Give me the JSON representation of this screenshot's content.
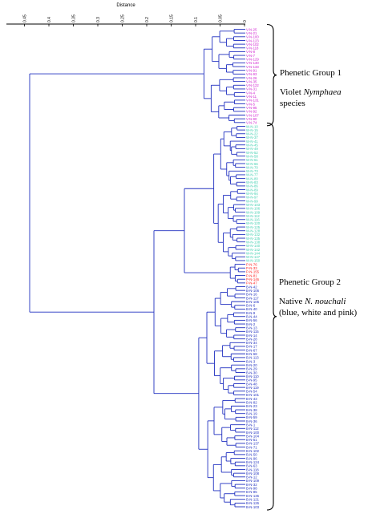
{
  "axis": {
    "title": "Distance",
    "ticks": [
      "0.45",
      "0.4",
      "0.35",
      "0.3",
      "0.25",
      "0.2",
      "0.15",
      "0.1",
      "0.05",
      "0"
    ]
  },
  "colors": {
    "violet": "#d020d0",
    "white": "#40d0b0",
    "pink": "#ff2020",
    "blue": "#2030c0",
    "tree": "#2030c0"
  },
  "groups": [
    {
      "title": "Phenetic Group 1",
      "line1": "Violet ",
      "line1_italic": "Nymphaea",
      "line2": "species"
    },
    {
      "title": "Phenetic Group 2",
      "line1": "Native ",
      "line1_italic": "N. nouchali",
      "line2": "(blue, white and pink)"
    }
  ],
  "leaves": [
    {
      "label": "V-N-25",
      "c": "violet"
    },
    {
      "label": "V-N-21",
      "c": "violet"
    },
    {
      "label": "V-N-100",
      "c": "violet"
    },
    {
      "label": "V-N-123",
      "c": "violet"
    },
    {
      "label": "V-N-102",
      "c": "violet"
    },
    {
      "label": "V-N-118",
      "c": "violet"
    },
    {
      "label": "V-N-8",
      "c": "violet"
    },
    {
      "label": "V-N-7",
      "c": "violet"
    },
    {
      "label": "V-N-129",
      "c": "violet"
    },
    {
      "label": "V-N-130",
      "c": "violet"
    },
    {
      "label": "V-N-133",
      "c": "violet"
    },
    {
      "label": "V-N-91",
      "c": "violet"
    },
    {
      "label": "V-N-93",
      "c": "violet"
    },
    {
      "label": "V-N-26",
      "c": "violet"
    },
    {
      "label": "V-N-35",
      "c": "violet"
    },
    {
      "label": "V-N-122",
      "c": "violet"
    },
    {
      "label": "V-N-31",
      "c": "violet"
    },
    {
      "label": "V-N-4",
      "c": "violet"
    },
    {
      "label": "V-N-11",
      "c": "violet"
    },
    {
      "label": "V-N-131",
      "c": "violet"
    },
    {
      "label": "V-N-5",
      "c": "violet"
    },
    {
      "label": "V-N-95",
      "c": "violet"
    },
    {
      "label": "V-N-92",
      "c": "violet"
    },
    {
      "label": "V-N-107",
      "c": "violet"
    },
    {
      "label": "V-N-90",
      "c": "violet"
    },
    {
      "label": "V-N-74",
      "c": "violet"
    },
    {
      "label": "W-N-10",
      "c": "white"
    },
    {
      "label": "W-N-15",
      "c": "white"
    },
    {
      "label": "W-N-22",
      "c": "white"
    },
    {
      "label": "W-N-37",
      "c": "white"
    },
    {
      "label": "W-N-41",
      "c": "white"
    },
    {
      "label": "W-N-45",
      "c": "white"
    },
    {
      "label": "W-N-49",
      "c": "white"
    },
    {
      "label": "W-N-52",
      "c": "white"
    },
    {
      "label": "W-N-58",
      "c": "white"
    },
    {
      "label": "W-N-61",
      "c": "white"
    },
    {
      "label": "W-N-66",
      "c": "white"
    },
    {
      "label": "W-N-70",
      "c": "white"
    },
    {
      "label": "W-N-73",
      "c": "white"
    },
    {
      "label": "W-N-77",
      "c": "white"
    },
    {
      "label": "W-N-80",
      "c": "white"
    },
    {
      "label": "W-N-83",
      "c": "white"
    },
    {
      "label": "W-N-86",
      "c": "white"
    },
    {
      "label": "W-N-89",
      "c": "white"
    },
    {
      "label": "W-N-94",
      "c": "white"
    },
    {
      "label": "W-N-97",
      "c": "white"
    },
    {
      "label": "W-N-99",
      "c": "white"
    },
    {
      "label": "W-N-103",
      "c": "white"
    },
    {
      "label": "W-N-106",
      "c": "white"
    },
    {
      "label": "W-N-109",
      "c": "white"
    },
    {
      "label": "W-N-112",
      "c": "white"
    },
    {
      "label": "W-N-116",
      "c": "white"
    },
    {
      "label": "W-N-120",
      "c": "white"
    },
    {
      "label": "W-N-125",
      "c": "white"
    },
    {
      "label": "W-N-128",
      "c": "white"
    },
    {
      "label": "W-N-132",
      "c": "white"
    },
    {
      "label": "W-N-135",
      "c": "white"
    },
    {
      "label": "W-N-138",
      "c": "white"
    },
    {
      "label": "W-N-140",
      "c": "white"
    },
    {
      "label": "W-N-142",
      "c": "white"
    },
    {
      "label": "W-N-144",
      "c": "white"
    },
    {
      "label": "W-N-147",
      "c": "white"
    },
    {
      "label": "W-N-150",
      "c": "white"
    },
    {
      "label": "P-N-76",
      "c": "pink"
    },
    {
      "label": "P-N-33",
      "c": "pink"
    },
    {
      "label": "P-N-155",
      "c": "pink"
    },
    {
      "label": "P-N-81",
      "c": "pink"
    },
    {
      "label": "P-N-146",
      "c": "pink"
    },
    {
      "label": "P-N-47",
      "c": "pink"
    },
    {
      "label": "B-N-42",
      "c": "blue"
    },
    {
      "label": "B-N-106",
      "c": "blue"
    },
    {
      "label": "B-N-16",
      "c": "blue"
    },
    {
      "label": "B-N-117",
      "c": "blue"
    },
    {
      "label": "B-N-105",
      "c": "blue"
    },
    {
      "label": "B-N-6",
      "c": "blue"
    },
    {
      "label": "B-N-40",
      "c": "blue"
    },
    {
      "label": "B-N-9",
      "c": "blue"
    },
    {
      "label": "B-N-44",
      "c": "blue"
    },
    {
      "label": "B-N-56",
      "c": "blue"
    },
    {
      "label": "B-N-2",
      "c": "blue"
    },
    {
      "label": "B-N-13",
      "c": "blue"
    },
    {
      "label": "B-N-115",
      "c": "blue"
    },
    {
      "label": "B-N-14",
      "c": "blue"
    },
    {
      "label": "B-N-28",
      "c": "blue"
    },
    {
      "label": "B-N-34",
      "c": "blue"
    },
    {
      "label": "B-N-17",
      "c": "blue"
    },
    {
      "label": "B-N-67",
      "c": "blue"
    },
    {
      "label": "B-N-68",
      "c": "blue"
    },
    {
      "label": "B-N-113",
      "c": "blue"
    },
    {
      "label": "B-N-3",
      "c": "blue"
    },
    {
      "label": "B-N-20",
      "c": "blue"
    },
    {
      "label": "B-N-29",
      "c": "blue"
    },
    {
      "label": "B-N-30",
      "c": "blue"
    },
    {
      "label": "B-N-110",
      "c": "blue"
    },
    {
      "label": "B-N-95",
      "c": "blue"
    },
    {
      "label": "B-N-48",
      "c": "blue"
    },
    {
      "label": "B-N-119",
      "c": "blue"
    },
    {
      "label": "B-N-54",
      "c": "blue"
    },
    {
      "label": "B-N-101",
      "c": "blue"
    },
    {
      "label": "B-N-43",
      "c": "blue"
    },
    {
      "label": "B-N-82",
      "c": "blue"
    },
    {
      "label": "B-N-23",
      "c": "blue"
    },
    {
      "label": "B-N-38",
      "c": "blue"
    },
    {
      "label": "B-N-19",
      "c": "blue"
    },
    {
      "label": "B-N-59",
      "c": "blue"
    },
    {
      "label": "B-N-36",
      "c": "blue"
    },
    {
      "label": "B-N-1",
      "c": "blue"
    },
    {
      "label": "B-N-112",
      "c": "blue"
    },
    {
      "label": "B-N-100",
      "c": "blue"
    },
    {
      "label": "B-N-104",
      "c": "blue"
    },
    {
      "label": "B-N-51",
      "c": "blue"
    },
    {
      "label": "B-N-137",
      "c": "blue"
    },
    {
      "label": "B-N-71",
      "c": "blue"
    },
    {
      "label": "B-N-102",
      "c": "blue"
    },
    {
      "label": "B-N-50",
      "c": "blue"
    },
    {
      "label": "B-N-96",
      "c": "blue"
    },
    {
      "label": "B-N-124",
      "c": "blue"
    },
    {
      "label": "B-N-63",
      "c": "blue"
    },
    {
      "label": "B-N-118",
      "c": "blue"
    },
    {
      "label": "B-N-108",
      "c": "blue"
    },
    {
      "label": "B-N-12",
      "c": "blue"
    },
    {
      "label": "B-N-109",
      "c": "blue"
    },
    {
      "label": "B-N-32",
      "c": "blue"
    },
    {
      "label": "B-N-98",
      "c": "blue"
    },
    {
      "label": "B-N-85",
      "c": "blue"
    },
    {
      "label": "B-N-136",
      "c": "blue"
    },
    {
      "label": "B-N-121",
      "c": "blue"
    },
    {
      "label": "B-N-126",
      "c": "blue"
    },
    {
      "label": "B-N-103",
      "c": "blue"
    }
  ]
}
